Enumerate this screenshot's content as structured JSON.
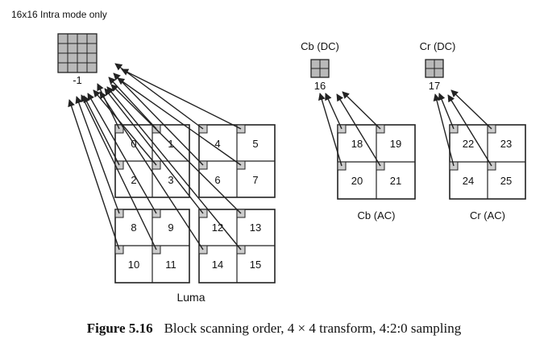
{
  "intra_label": "16x16 Intra mode only",
  "dc_luma_index": "-1",
  "cb_dc": {
    "title": "Cb (DC)",
    "index": "16"
  },
  "cr_dc": {
    "title": "Cr (DC)",
    "index": "17"
  },
  "luma_blocks": [
    "0",
    "1",
    "2",
    "3",
    "4",
    "5",
    "6",
    "7",
    "8",
    "9",
    "10",
    "11",
    "12",
    "13",
    "14",
    "15"
  ],
  "cb_ac": {
    "blocks": [
      "18",
      "19",
      "20",
      "21"
    ],
    "label": "Cb (AC)"
  },
  "cr_ac": {
    "blocks": [
      "22",
      "23",
      "24",
      "25"
    ],
    "label": "Cr (AC)"
  },
  "luma_label": "Luma",
  "caption": {
    "figure": "Figure 5.16",
    "text": "Block scanning order, 4 × 4 transform, 4:2:0 sampling"
  },
  "colors": {
    "stroke": "#222222",
    "dc_fill": "#b9b9b9",
    "marker_fill": "#cccccc"
  }
}
